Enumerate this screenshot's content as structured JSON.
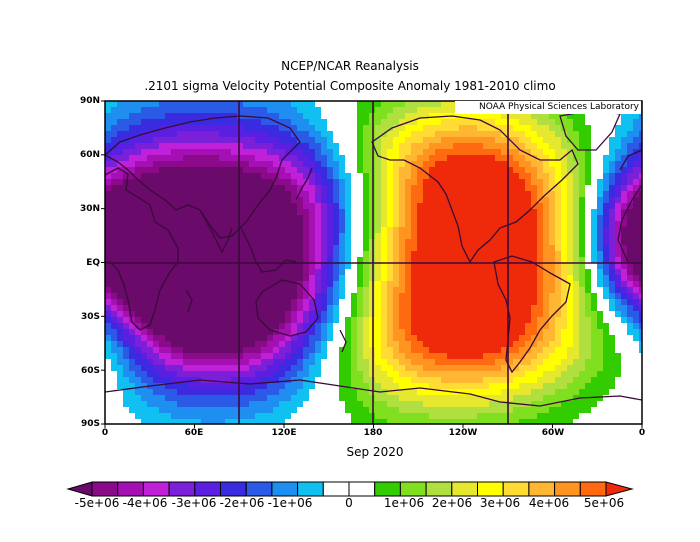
{
  "title_line1": "NCEP/NCAR Reanalysis",
  "title_line2": ".2101 sigma Velocity Potential  Composite Anomaly 1981-2010 climo",
  "credit": "NOAA Physical Sciences Laboratory",
  "date_label": "Sep 2020",
  "lat_labels": [
    "90N",
    "60N",
    "30N",
    "EQ",
    "30S",
    "60S",
    "90S"
  ],
  "lon_labels": [
    "0",
    "60E",
    "120E",
    "180",
    "120W",
    "60W",
    "0"
  ],
  "colorbar": {
    "colors": [
      "#6a0a6a",
      "#8a0a8a",
      "#a410b4",
      "#c020d8",
      "#7b1fd8",
      "#5a1fe0",
      "#3a2ae0",
      "#2a5ae6",
      "#1e8ef0",
      "#0fc0f0",
      "#ffffff",
      "#ffffff",
      "#33cc00",
      "#80e020",
      "#b0e040",
      "#e6e830",
      "#ffff00",
      "#ffdb33",
      "#ffb733",
      "#ff9420",
      "#ff6a10",
      "#ee2a0a"
    ],
    "labels": [
      "-5e+06",
      "-4e+06",
      "-3e+06",
      "-2e+06",
      "-1e+06",
      "0",
      "1e+06",
      "2e+06",
      "3e+06",
      "4e+06",
      "5e+06"
    ]
  },
  "fields": [
    {
      "lon": 70,
      "lat": 18,
      "amp": -5.2,
      "sx": 70,
      "sy": 45
    },
    {
      "lon": 90,
      "lat": -22,
      "amp": -5.0,
      "sx": 55,
      "sy": 35
    },
    {
      "lon": 40,
      "lat": 10,
      "amp": -2.5,
      "sx": 40,
      "sy": 35
    },
    {
      "lon": 140,
      "lat": 40,
      "amp": -1.8,
      "sx": 35,
      "sy": 25
    },
    {
      "lon": 265,
      "lat": 12,
      "amp": 5.0,
      "sx": 55,
      "sy": 40
    },
    {
      "lon": 205,
      "lat": -5,
      "amp": 3.0,
      "sx": 60,
      "sy": 50
    },
    {
      "lon": 240,
      "lat": -45,
      "amp": 2.5,
      "sx": 70,
      "sy": 25
    },
    {
      "lon": 230,
      "lat": 60,
      "amp": 2.0,
      "sx": 60,
      "sy": 25
    },
    {
      "lon": 355,
      "lat": 15,
      "amp": -3.0,
      "sx": 22,
      "sy": 25
    },
    {
      "lon": 0,
      "lat": -40,
      "amp": 1.0,
      "sx": 20,
      "sy": 25
    }
  ]
}
